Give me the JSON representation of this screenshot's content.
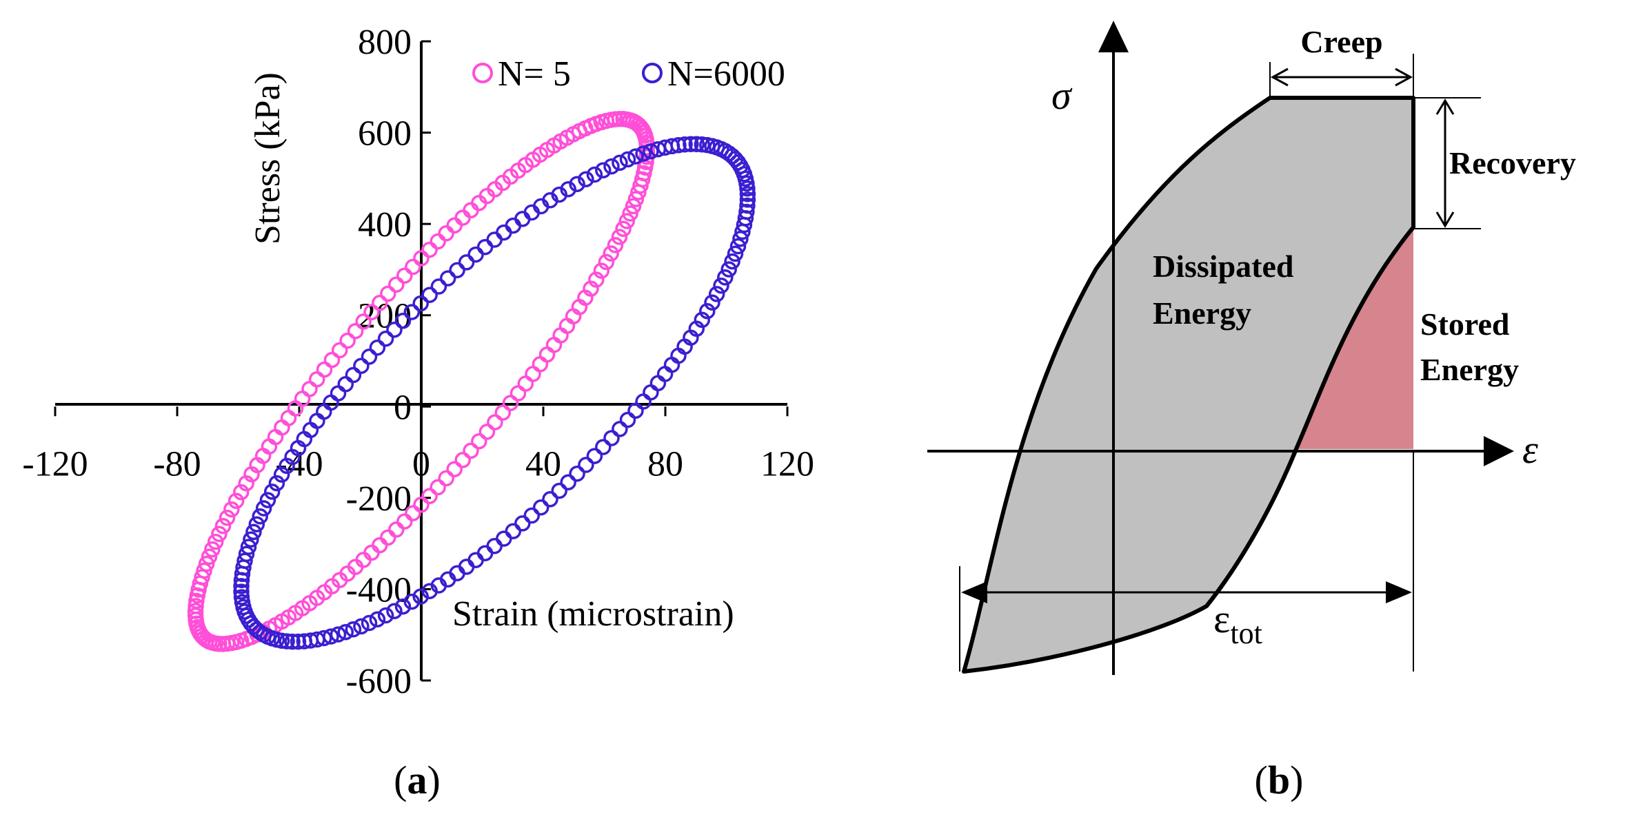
{
  "panel_a": {
    "label": "a",
    "chart_data": {
      "type": "scatter",
      "xlabel": "Strain (microstrain)",
      "ylabel": "Stress (kPa)",
      "xlim": [
        -120,
        120
      ],
      "ylim": [
        -600,
        800
      ],
      "xticks": [
        -120,
        -80,
        -40,
        0,
        40,
        80,
        120
      ],
      "yticks": [
        -600,
        -400,
        -200,
        0,
        200,
        400,
        600,
        800
      ],
      "legend_position": "top-right",
      "grid": false,
      "series": [
        {
          "name": "N= 5",
          "color": "#FF4FD8",
          "marker": "open-circle",
          "loop": {
            "strain_amplitude": 74,
            "strain_center": 0,
            "stress_amplitude": 575,
            "stress_center": 55,
            "phase_lag_deg": 28
          }
        },
        {
          "name": "N=6000",
          "color": "#3A1FD0",
          "marker": "open-circle",
          "loop": {
            "strain_amplitude": 83,
            "strain_center": 24,
            "stress_amplitude": 545,
            "stress_center": 30,
            "phase_lag_deg": 38
          }
        }
      ]
    }
  },
  "panel_b": {
    "label": "b",
    "x_axis_symbol": "ε",
    "y_axis_symbol": "σ",
    "creep_label": "Creep",
    "recovery_label": "Recovery",
    "dissipated_label_1": "Dissipated",
    "dissipated_label_2": "Energy",
    "stored_label_1": "Stored",
    "stored_label_2": "Energy",
    "total_strain_symbol": "ε",
    "total_strain_subscript": "tot",
    "colors": {
      "dissipated": "#C0C0C0",
      "stored": "#D6848E"
    }
  }
}
